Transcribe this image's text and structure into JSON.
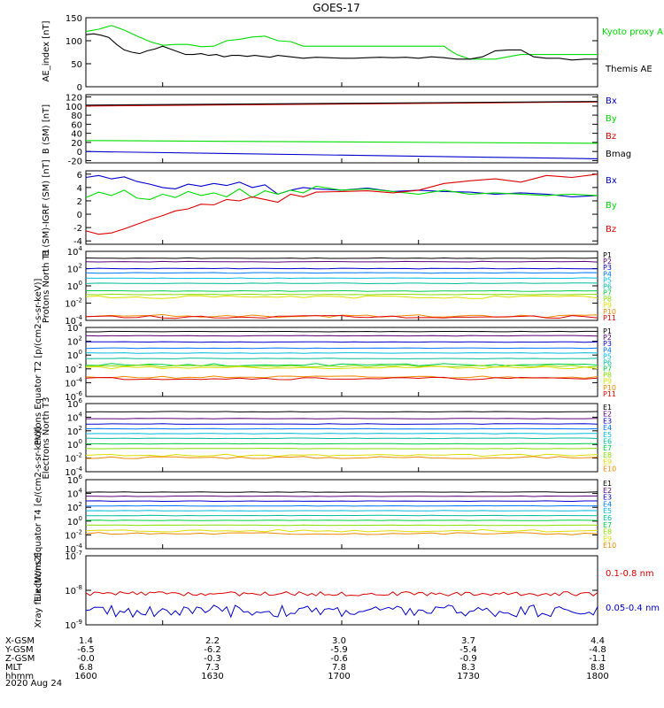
{
  "title": "GOES-17",
  "date": "2020 Aug 24",
  "colors": {
    "green": "#00dd00",
    "blue": "#0000cc",
    "red": "#dd0000",
    "black": "#000000",
    "proton_channels": [
      "#000000",
      "#5a0078",
      "#0000cc",
      "#0077ff",
      "#00bbdd",
      "#00bb99",
      "#00cc44",
      "#88dd00",
      "#dddd00",
      "#ee8800",
      "#dd0000"
    ],
    "electron_channels": [
      "#000000",
      "#5a0078",
      "#0000cc",
      "#0077ff",
      "#00bbdd",
      "#00bb99",
      "#00cc44",
      "#88dd00",
      "#dddd00",
      "#ee8800",
      "#dd0000"
    ]
  },
  "x_axis": {
    "rows": [
      {
        "label": "X-GSM",
        "values": [
          "1.4",
          "2.2",
          "3.0",
          "3.7",
          "4.4"
        ]
      },
      {
        "label": "Y-GSM",
        "values": [
          "-6.5",
          "-6.2",
          "-5.9",
          "-5.4",
          "-4.8"
        ]
      },
      {
        "label": "Z-GSM",
        "values": [
          "-0.0",
          "-0.3",
          "-0.6",
          "-0.9",
          "-1.1"
        ]
      },
      {
        "label": "MLT",
        "values": [
          "6.8",
          "7.3",
          "7.8",
          "8.3",
          "8.8"
        ]
      },
      {
        "label": "hhmm",
        "values": [
          "1600",
          "1630",
          "1700",
          "1730",
          "1800"
        ]
      }
    ]
  },
  "chart_data": [
    {
      "type": "line",
      "id": "ae",
      "ylabel": "AE_index [nT]",
      "scale": "linear",
      "ylim": [
        0,
        150
      ],
      "xlim": [
        1600,
        1800
      ],
      "y_ticks": [
        "0",
        "50",
        "100",
        "150"
      ],
      "series": [
        {
          "name": "Kyoto proxy AE",
          "color": "#00dd00",
          "x": [
            1600,
            1605,
            1610,
            1615,
            1620,
            1625,
            1630,
            1635,
            1640,
            1645,
            1650,
            1655,
            1660,
            1665,
            1670,
            1675,
            1680,
            1685,
            1690,
            1695,
            1700,
            1710,
            1720,
            1730,
            1740,
            1742,
            1745,
            1750,
            1760,
            1770,
            1780,
            1790,
            1800
          ],
          "y": [
            120,
            125,
            133,
            123,
            110,
            98,
            90,
            92,
            92,
            87,
            88,
            100,
            103,
            108,
            110,
            100,
            98,
            88,
            88,
            88,
            88,
            88,
            88,
            88,
            88,
            80,
            70,
            60,
            60,
            70,
            70,
            70,
            70
          ]
        },
        {
          "name": "Themis AE",
          "color": "#000000",
          "x": [
            1600,
            1603,
            1606,
            1609,
            1612,
            1615,
            1618,
            1621,
            1624,
            1627,
            1630,
            1633,
            1636,
            1639,
            1642,
            1645,
            1648,
            1651,
            1654,
            1657,
            1660,
            1663,
            1666,
            1669,
            1672,
            1675,
            1680,
            1685,
            1690,
            1695,
            1700,
            1705,
            1710,
            1715,
            1720,
            1725,
            1730,
            1735,
            1740,
            1745,
            1750,
            1755,
            1760,
            1765,
            1770,
            1775,
            1780,
            1785,
            1790,
            1795,
            1800
          ],
          "y": [
            113,
            115,
            112,
            107,
            92,
            80,
            75,
            72,
            78,
            82,
            88,
            82,
            76,
            70,
            70,
            72,
            68,
            70,
            65,
            68,
            68,
            66,
            68,
            66,
            64,
            68,
            65,
            62,
            64,
            63,
            62,
            62,
            63,
            64,
            63,
            64,
            62,
            65,
            63,
            60,
            60,
            65,
            78,
            80,
            80,
            65,
            62,
            62,
            58,
            60,
            60
          ]
        }
      ]
    },
    {
      "type": "line",
      "id": "bsm",
      "ylabel": "B (SM) [nT]",
      "scale": "linear",
      "ylim": [
        -25,
        125
      ],
      "xlim": [
        1600,
        1800
      ],
      "y_ticks": [
        "-20",
        "0",
        "20",
        "40",
        "60",
        "80",
        "100",
        "120"
      ],
      "series": [
        {
          "name": "Bx",
          "color": "#0000cc",
          "x": [
            1600,
            1800
          ],
          "y": [
            0,
            -16
          ]
        },
        {
          "name": "By",
          "color": "#00dd00",
          "x": [
            1600,
            1800
          ],
          "y": [
            24,
            18
          ]
        },
        {
          "name": "Bz",
          "color": "#dd0000",
          "x": [
            1600,
            1800
          ],
          "y": [
            100,
            109
          ]
        },
        {
          "name": "Bmag",
          "color": "#000000",
          "x": [
            1600,
            1800
          ],
          "y": [
            102,
            110
          ]
        }
      ]
    },
    {
      "type": "line",
      "id": "bigrf",
      "ylabel": "B (SM)-IGRF (SM) [nT]",
      "scale": "linear",
      "ylim": [
        -4.5,
        6.5
      ],
      "xlim": [
        1600,
        1800
      ],
      "y_ticks": [
        "-4",
        "-2",
        "0",
        "2",
        "4",
        "6"
      ],
      "series": [
        {
          "name": "Bx",
          "color": "#0000cc",
          "x": [
            1600,
            1605,
            1610,
            1615,
            1620,
            1625,
            1630,
            1635,
            1640,
            1645,
            1650,
            1655,
            1660,
            1665,
            1670,
            1675,
            1680,
            1685,
            1690,
            1700,
            1710,
            1720,
            1730,
            1740,
            1750,
            1760,
            1770,
            1780,
            1790,
            1800
          ],
          "y": [
            5.5,
            5.8,
            5.3,
            5.6,
            4.9,
            4.5,
            4.0,
            3.8,
            4.5,
            4.2,
            4.6,
            4.3,
            4.8,
            4.0,
            4.4,
            3.0,
            3.6,
            4.0,
            3.8,
            3.6,
            3.9,
            3.4,
            3.6,
            3.4,
            3.3,
            3.0,
            3.2,
            3.0,
            2.6,
            2.8
          ]
        },
        {
          "name": "By",
          "color": "#00dd00",
          "x": [
            1600,
            1605,
            1610,
            1615,
            1620,
            1625,
            1630,
            1635,
            1640,
            1645,
            1650,
            1655,
            1660,
            1665,
            1670,
            1675,
            1680,
            1685,
            1690,
            1700,
            1710,
            1720,
            1730,
            1740,
            1750,
            1760,
            1770,
            1780,
            1790,
            1800
          ],
          "y": [
            2.5,
            3.3,
            2.8,
            3.6,
            2.4,
            2.2,
            3.0,
            2.5,
            3.4,
            2.8,
            3.2,
            2.6,
            3.8,
            2.5,
            3.5,
            3.0,
            3.6,
            3.2,
            4.2,
            3.6,
            3.8,
            3.4,
            3.0,
            3.6,
            3.0,
            3.2,
            3.0,
            2.8,
            3.0,
            2.8
          ]
        },
        {
          "name": "Bz",
          "color": "#dd0000",
          "x": [
            1600,
            1605,
            1610,
            1615,
            1620,
            1625,
            1630,
            1635,
            1640,
            1645,
            1650,
            1655,
            1660,
            1665,
            1670,
            1675,
            1680,
            1685,
            1690,
            1700,
            1710,
            1720,
            1730,
            1740,
            1750,
            1760,
            1770,
            1780,
            1790,
            1800
          ],
          "y": [
            -2.5,
            -3.0,
            -2.8,
            -2.2,
            -1.5,
            -0.8,
            -0.2,
            0.5,
            0.8,
            1.5,
            1.4,
            2.2,
            2.0,
            2.6,
            2.2,
            1.8,
            3.0,
            2.6,
            3.3,
            3.4,
            3.5,
            3.2,
            3.6,
            4.6,
            5.0,
            5.3,
            4.8,
            5.8,
            5.5,
            6.0
          ]
        }
      ]
    },
    {
      "type": "line",
      "id": "protons_t1",
      "ylabel": "Protons North T1",
      "scale": "log",
      "ylim": [
        -4,
        4
      ],
      "xlim": [
        1600,
        1800
      ],
      "y_ticks": [
        "10^-4",
        "10^-2",
        "10^0",
        "10^2",
        "10^4"
      ],
      "legend": [
        "P1",
        "P2",
        "P3",
        "P4",
        "P5",
        "P6",
        "P7",
        "P8",
        "P9",
        "P10",
        "P11"
      ],
      "series_log_levels": [
        3.2,
        2.8,
        2.0,
        1.5,
        0.9,
        0.3,
        -0.6,
        -1.0,
        -1.3,
        -3.5,
        -3.6
      ]
    },
    {
      "type": "line",
      "id": "protons_t2",
      "ylabel": "Protons Equator T2 [p/(cm2-s-sr-keV)]",
      "scale": "log",
      "ylim": [
        -6,
        4
      ],
      "xlim": [
        1600,
        1800
      ],
      "y_ticks": [
        "10^-6",
        "10^-4",
        "10^-2",
        "10^0",
        "10^2",
        "10^4"
      ],
      "legend": [
        "P1",
        "P2",
        "P3",
        "P4",
        "P5",
        "P6",
        "P7",
        "P8",
        "P9",
        "P10",
        "P11"
      ],
      "series_log_levels": [
        3.4,
        2.8,
        1.9,
        1.0,
        0.3,
        -0.5,
        -1.4,
        -1.6,
        -1.8,
        -3.2,
        -3.4
      ]
    },
    {
      "type": "line",
      "id": "electrons_t3",
      "ylabel": "Electrons North T3",
      "scale": "log",
      "ylim": [
        -4,
        6
      ],
      "xlim": [
        1600,
        1800
      ],
      "y_ticks": [
        "10^-4",
        "10^-2",
        "10^0",
        "10^2",
        "10^4",
        "10^6"
      ],
      "legend": [
        "E1",
        "E2",
        "E3",
        "E4",
        "E5",
        "E6",
        "E7",
        "E8",
        "E9",
        "E10"
      ],
      "series_log_levels": [
        4.8,
        3.8,
        3.0,
        2.3,
        1.6,
        0.9,
        0.1,
        -0.6,
        -1.6,
        -1.9
      ]
    },
    {
      "type": "line",
      "id": "electrons_t4",
      "ylabel": "Electrons Equator T4 [e/(cm2-s-sr-keV)]",
      "scale": "log",
      "ylim": [
        -4,
        6
      ],
      "xlim": [
        1600,
        1800
      ],
      "y_ticks": [
        "10^-4",
        "10^-2",
        "10^0",
        "10^2",
        "10^4",
        "10^6"
      ],
      "legend": [
        "E1",
        "E2",
        "E3",
        "E4",
        "E5",
        "E6",
        "E7",
        "E8",
        "E9",
        "E10"
      ],
      "series_log_levels": [
        4.2,
        3.6,
        2.9,
        2.2,
        1.5,
        0.8,
        0.1,
        -0.6,
        -1.4,
        -1.8
      ]
    },
    {
      "type": "line",
      "id": "xray",
      "ylabel": "Xray flux [W/m2]",
      "scale": "log",
      "ylim": [
        -9,
        -7
      ],
      "xlim": [
        1600,
        1800
      ],
      "y_ticks": [
        "10^-9",
        "10^-8",
        "10^-7"
      ],
      "series": [
        {
          "name": "0.1-0.8 nm",
          "color": "#dd0000",
          "level": -8.1
        },
        {
          "name": "0.05-0.4 nm",
          "color": "#0000cc",
          "level": -8.6
        }
      ]
    }
  ]
}
